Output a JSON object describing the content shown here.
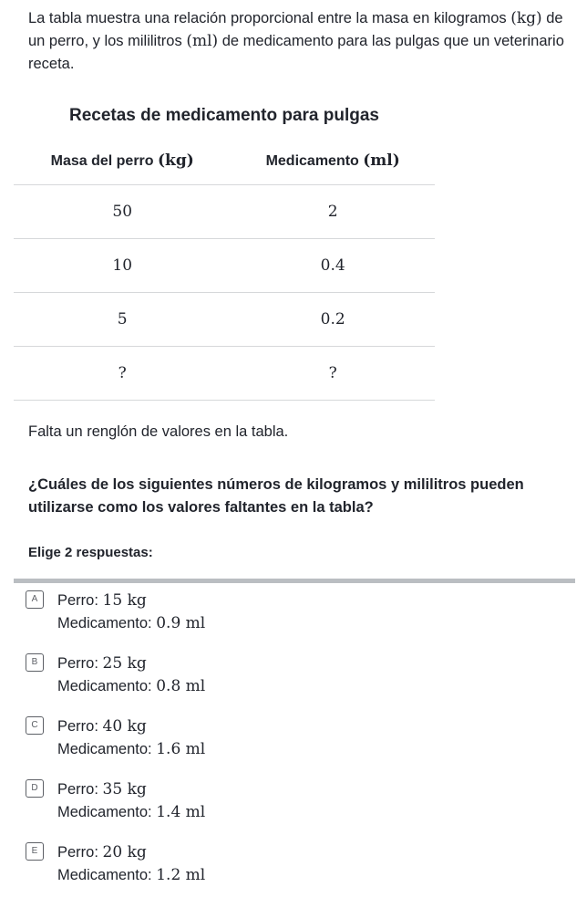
{
  "intro": {
    "p1": "La tabla muestra una relación proporcional entre la masa en kilogramos ",
    "kg": "(kg)",
    "p2": " de un perro, y los mililitros ",
    "ml": "(ml)",
    "p3": " de medicamento para las pulgas que un veterinario receta."
  },
  "table": {
    "title": "Recetas de medicamento para pulgas",
    "headers": [
      {
        "text": "Masa del perro ",
        "unit": "(kg)"
      },
      {
        "text": "Medicamento ",
        "unit": "(ml)"
      }
    ],
    "rows": [
      [
        "50",
        "2"
      ],
      [
        "10",
        "0.4"
      ],
      [
        "5",
        "0.2"
      ],
      [
        "?",
        "?"
      ]
    ]
  },
  "missing": "Falta un renglón de valores en la tabla.",
  "question": "¿Cuáles de los siguientes números de kilogramos y mililitros pueden utilizarse como los valores faltantes en la tabla?",
  "prompt": "Elige 2 respuestas:",
  "options": [
    {
      "letter": "A",
      "dog_label": "Perro: ",
      "dog": "15 kg",
      "med_label": "Medicamento: ",
      "med": "0.9 ml"
    },
    {
      "letter": "B",
      "dog_label": "Perro: ",
      "dog": "25 kg",
      "med_label": "Medicamento: ",
      "med": "0.8 ml"
    },
    {
      "letter": "C",
      "dog_label": "Perro: ",
      "dog": "40 kg",
      "med_label": "Medicamento: ",
      "med": "1.6 ml"
    },
    {
      "letter": "D",
      "dog_label": "Perro: ",
      "dog": "35 kg",
      "med_label": "Medicamento: ",
      "med": "1.4 ml"
    },
    {
      "letter": "E",
      "dog_label": "Perro: ",
      "dog": "20 kg",
      "med_label": "Medicamento: ",
      "med": "1.2 ml"
    }
  ]
}
